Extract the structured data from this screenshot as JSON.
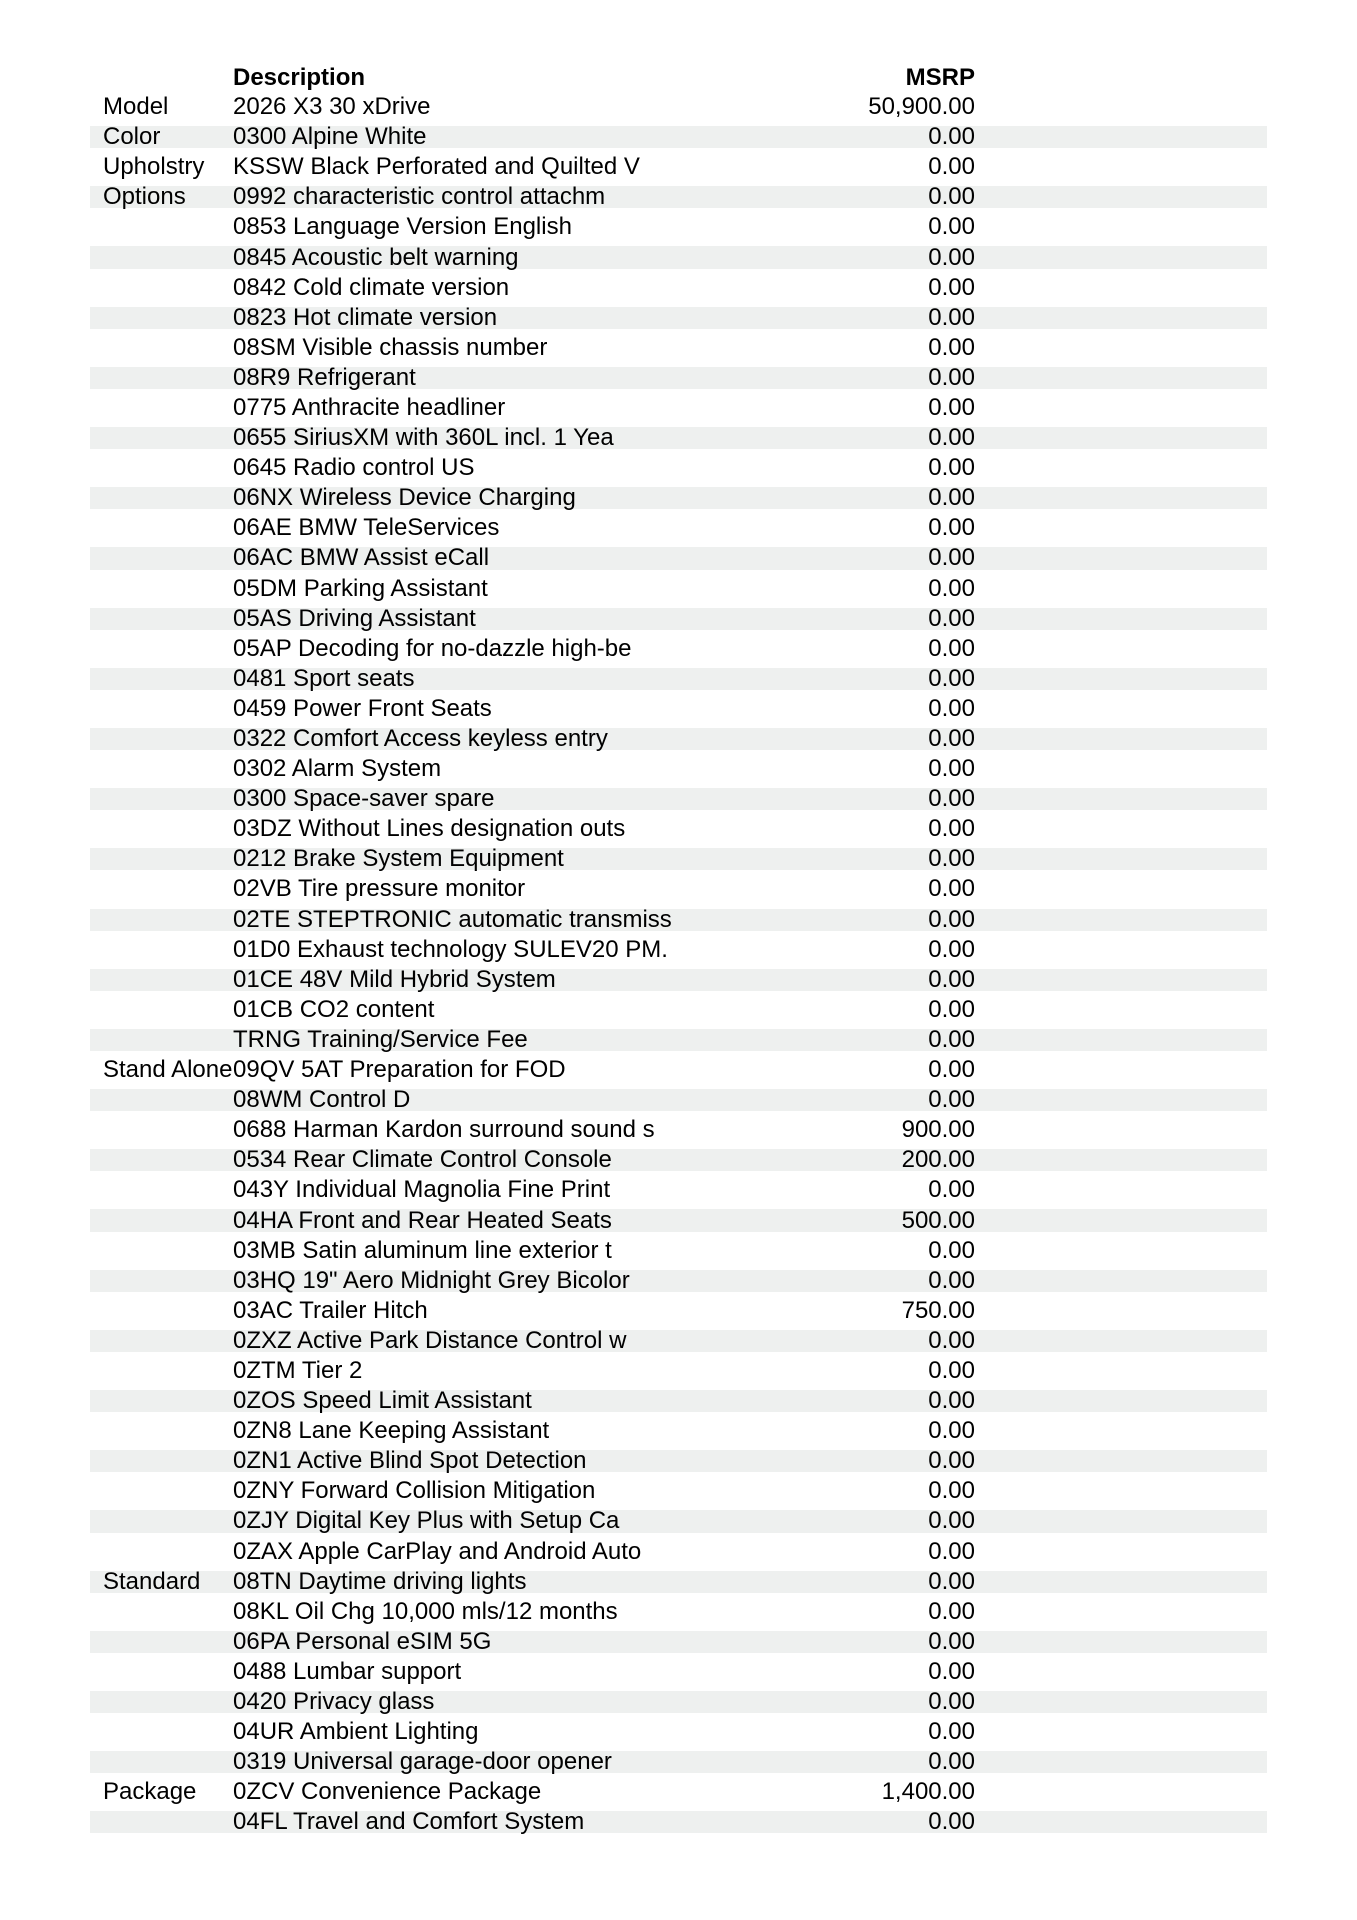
{
  "table": {
    "headers": {
      "category": "",
      "description": "Description",
      "msrp": "MSRP"
    },
    "rows": [
      {
        "category": "Model",
        "description": "2026 X3 30 xDrive",
        "msrp": "50,900.00"
      },
      {
        "category": "Color",
        "description": "0300 Alpine White",
        "msrp": "0.00"
      },
      {
        "category": "Upholstry",
        "description": "KSSW Black Perforated and Quilted V",
        "msrp": "0.00"
      },
      {
        "category": "Options",
        "description": "0992 characteristic control attachm",
        "msrp": "0.00"
      },
      {
        "category": "",
        "description": "0853 Language Version English",
        "msrp": "0.00"
      },
      {
        "category": "",
        "description": "0845 Acoustic belt warning",
        "msrp": "0.00"
      },
      {
        "category": "",
        "description": "0842 Cold climate version",
        "msrp": "0.00"
      },
      {
        "category": "",
        "description": "0823 Hot climate version",
        "msrp": "0.00"
      },
      {
        "category": "",
        "description": "08SM Visible chassis number",
        "msrp": "0.00"
      },
      {
        "category": "",
        "description": "08R9 Refrigerant",
        "msrp": "0.00"
      },
      {
        "category": "",
        "description": "0775 Anthracite headliner",
        "msrp": "0.00"
      },
      {
        "category": "",
        "description": "0655 SiriusXM with 360L incl. 1 Yea",
        "msrp": "0.00"
      },
      {
        "category": "",
        "description": "0645 Radio control US",
        "msrp": "0.00"
      },
      {
        "category": "",
        "description": "06NX Wireless Device Charging",
        "msrp": "0.00"
      },
      {
        "category": "",
        "description": "06AE BMW TeleServices",
        "msrp": "0.00"
      },
      {
        "category": "",
        "description": "06AC BMW Assist eCall",
        "msrp": "0.00"
      },
      {
        "category": "",
        "description": "05DM Parking Assistant",
        "msrp": "0.00"
      },
      {
        "category": "",
        "description": "05AS Driving Assistant",
        "msrp": "0.00"
      },
      {
        "category": "",
        "description": "05AP Decoding for no-dazzle high-be",
        "msrp": "0.00"
      },
      {
        "category": "",
        "description": "0481 Sport seats",
        "msrp": "0.00"
      },
      {
        "category": "",
        "description": "0459 Power Front Seats",
        "msrp": "0.00"
      },
      {
        "category": "",
        "description": "0322 Comfort Access keyless entry",
        "msrp": "0.00"
      },
      {
        "category": "",
        "description": "0302 Alarm System",
        "msrp": "0.00"
      },
      {
        "category": "",
        "description": "0300 Space-saver spare",
        "msrp": "0.00"
      },
      {
        "category": "",
        "description": "03DZ Without Lines designation outs",
        "msrp": "0.00"
      },
      {
        "category": "",
        "description": "0212 Brake System Equipment",
        "msrp": "0.00"
      },
      {
        "category": "",
        "description": "02VB Tire pressure monitor",
        "msrp": "0.00"
      },
      {
        "category": "",
        "description": "02TE STEPTRONIC automatic transmiss",
        "msrp": "0.00"
      },
      {
        "category": "",
        "description": "01D0 Exhaust technology SULEV20 PM.",
        "msrp": "0.00"
      },
      {
        "category": "",
        "description": "01CE 48V Mild Hybrid System",
        "msrp": "0.00"
      },
      {
        "category": "",
        "description": "01CB CO2 content",
        "msrp": "0.00"
      },
      {
        "category": "",
        "description": "TRNG Training/Service Fee",
        "msrp": "0.00"
      },
      {
        "category": "Stand Alone",
        "description": "09QV 5AT Preparation for FOD",
        "msrp": "0.00"
      },
      {
        "category": "",
        "description": "08WM Control D",
        "msrp": "0.00"
      },
      {
        "category": "",
        "description": "0688 Harman Kardon surround sound s",
        "msrp": "900.00"
      },
      {
        "category": "",
        "description": "0534 Rear Climate Control Console",
        "msrp": "200.00"
      },
      {
        "category": "",
        "description": "043Y Individual Magnolia Fine Print",
        "msrp": "0.00"
      },
      {
        "category": "",
        "description": "04HA Front and Rear Heated Seats",
        "msrp": "500.00"
      },
      {
        "category": "",
        "description": "03MB Satin aluminum line exterior t",
        "msrp": "0.00"
      },
      {
        "category": "",
        "description": "03HQ 19\" Aero Midnight Grey Bicolor",
        "msrp": "0.00"
      },
      {
        "category": "",
        "description": "03AC Trailer Hitch",
        "msrp": "750.00"
      },
      {
        "category": "",
        "description": "0ZXZ Active Park Distance Control w",
        "msrp": "0.00"
      },
      {
        "category": "",
        "description": "0ZTM Tier 2",
        "msrp": "0.00"
      },
      {
        "category": "",
        "description": "0ZOS Speed Limit Assistant",
        "msrp": "0.00"
      },
      {
        "category": "",
        "description": "0ZN8 Lane Keeping Assistant",
        "msrp": "0.00"
      },
      {
        "category": "",
        "description": "0ZN1 Active Blind Spot Detection",
        "msrp": "0.00"
      },
      {
        "category": "",
        "description": "0ZNY Forward Collision Mitigation",
        "msrp": "0.00"
      },
      {
        "category": "",
        "description": "0ZJY Digital Key Plus with Setup Ca",
        "msrp": "0.00"
      },
      {
        "category": "",
        "description": "0ZAX Apple CarPlay and Android Auto",
        "msrp": "0.00"
      },
      {
        "category": "Standard",
        "description": "08TN Daytime driving lights",
        "msrp": "0.00"
      },
      {
        "category": "",
        "description": "08KL Oil Chg 10,000 mls/12 months",
        "msrp": "0.00"
      },
      {
        "category": "",
        "description": "06PA Personal eSIM 5G",
        "msrp": "0.00"
      },
      {
        "category": "",
        "description": "0488 Lumbar support",
        "msrp": "0.00"
      },
      {
        "category": "",
        "description": "0420 Privacy glass",
        "msrp": "0.00"
      },
      {
        "category": "",
        "description": "04UR Ambient Lighting",
        "msrp": "0.00"
      },
      {
        "category": "",
        "description": "0319 Universal garage-door opener",
        "msrp": "0.00"
      },
      {
        "category": "Package",
        "description": "0ZCV Convenience Package",
        "msrp": "1,400.00"
      },
      {
        "category": "",
        "description": "04FL Travel and Comfort System",
        "msrp": "0.00"
      }
    ]
  },
  "colors": {
    "stripe": "#eef0ef",
    "text": "#000000"
  }
}
